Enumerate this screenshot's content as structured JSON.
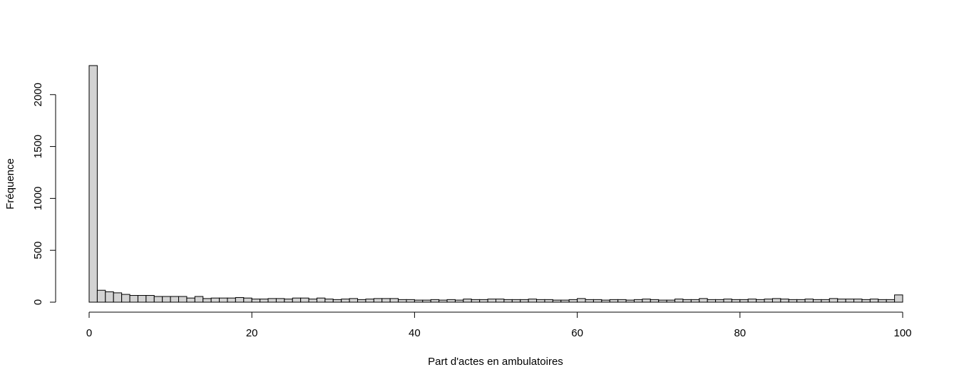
{
  "chart_data": {
    "type": "bar",
    "title": "",
    "xlabel": "Part d'actes en ambulatoires",
    "ylabel": "Fréquence",
    "xlim": [
      0,
      100
    ],
    "ylim": [
      0,
      2280
    ],
    "bin_width": 1,
    "bin_start": 0,
    "grid": false,
    "x_ticks": [
      0,
      20,
      40,
      60,
      80,
      100
    ],
    "x_tick_labels": [
      "0",
      "20",
      "40",
      "60",
      "80",
      "100"
    ],
    "y_ticks": [
      0,
      500,
      1000,
      1500,
      2000
    ],
    "y_tick_labels": [
      "0",
      "500",
      "1000",
      "1500",
      "2000"
    ],
    "bar_fill": "#d3d3d3",
    "bar_stroke": "#000000",
    "values": [
      2280,
      115,
      100,
      90,
      75,
      65,
      65,
      65,
      55,
      55,
      55,
      55,
      40,
      55,
      35,
      40,
      40,
      40,
      45,
      40,
      30,
      30,
      35,
      35,
      30,
      40,
      40,
      30,
      40,
      30,
      25,
      30,
      35,
      25,
      30,
      35,
      35,
      35,
      25,
      25,
      20,
      20,
      25,
      20,
      25,
      20,
      30,
      25,
      25,
      30,
      30,
      25,
      25,
      25,
      30,
      25,
      25,
      20,
      20,
      25,
      35,
      25,
      25,
      20,
      25,
      25,
      20,
      25,
      30,
      25,
      20,
      20,
      30,
      25,
      25,
      35,
      25,
      25,
      30,
      25,
      25,
      30,
      25,
      30,
      35,
      30,
      25,
      25,
      30,
      25,
      25,
      35,
      30,
      30,
      30,
      25,
      30,
      25,
      25,
      70
    ]
  }
}
